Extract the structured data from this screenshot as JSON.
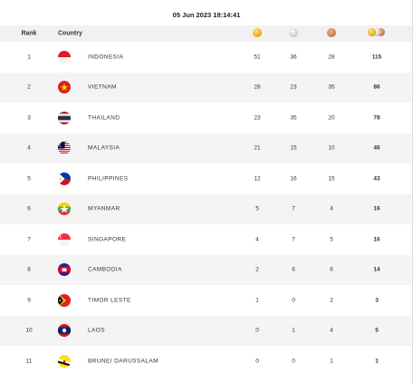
{
  "timestamp": "05 Jun 2023  18:14:41",
  "headers": {
    "rank": "Rank",
    "country": "Country"
  },
  "icons": {
    "gold": "gold-medal-icon",
    "silver": "silver-medal-icon",
    "bronze": "bronze-medal-icon",
    "total": "all-medals-icon"
  },
  "rows": [
    {
      "rank": "1",
      "country": "INDONESIA",
      "flag": "indonesia",
      "gold": "51",
      "silver": "36",
      "bronze": "28",
      "total": "115"
    },
    {
      "rank": "2",
      "country": "VIETNAM",
      "flag": "vietnam",
      "gold": "28",
      "silver": "23",
      "bronze": "35",
      "total": "86"
    },
    {
      "rank": "3",
      "country": "THAILAND",
      "flag": "thailand",
      "gold": "23",
      "silver": "35",
      "bronze": "20",
      "total": "78"
    },
    {
      "rank": "4",
      "country": "MALAYSIA",
      "flag": "malaysia",
      "gold": "21",
      "silver": "15",
      "bronze": "10",
      "total": "46"
    },
    {
      "rank": "5",
      "country": "PHILIPPINES",
      "flag": "philippines",
      "gold": "12",
      "silver": "16",
      "bronze": "15",
      "total": "43"
    },
    {
      "rank": "6",
      "country": "MYANMAR",
      "flag": "myanmar",
      "gold": "5",
      "silver": "7",
      "bronze": "4",
      "total": "16"
    },
    {
      "rank": "7",
      "country": "SINGAPORE",
      "flag": "singapore",
      "gold": "4",
      "silver": "7",
      "bronze": "5",
      "total": "16"
    },
    {
      "rank": "8",
      "country": "CAMBODIA",
      "flag": "cambodia",
      "gold": "2",
      "silver": "6",
      "bronze": "6",
      "total": "14"
    },
    {
      "rank": "9",
      "country": "TIMOR LESTE",
      "flag": "timor-leste",
      "gold": "1",
      "silver": "0",
      "bronze": "2",
      "total": "3"
    },
    {
      "rank": "10",
      "country": "LAOS",
      "flag": "laos",
      "gold": "0",
      "silver": "1",
      "bronze": "4",
      "total": "5"
    },
    {
      "rank": "11",
      "country": "BRUNEI DARUSSALAM",
      "flag": "brunei",
      "gold": "0",
      "silver": "0",
      "bronze": "1",
      "total": "1"
    }
  ]
}
